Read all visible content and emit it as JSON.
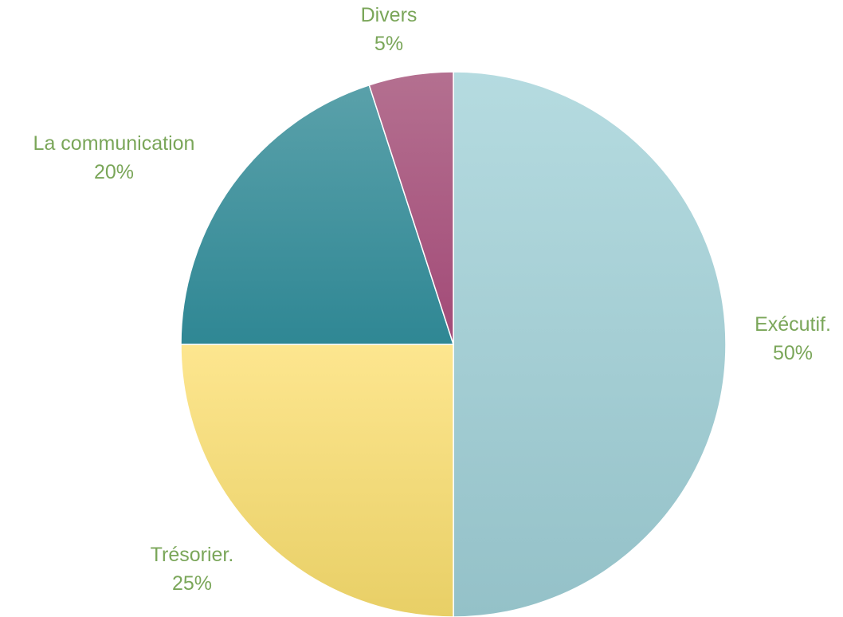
{
  "chart_data": {
    "type": "pie",
    "title": "",
    "start_angle_deg": 0,
    "direction": "clockwise",
    "slices": [
      {
        "label": "Exécutif.",
        "value": 50,
        "percent_label": "50%",
        "colors": [
          "#b5dbe0",
          "#94c1c8"
        ]
      },
      {
        "label": "Trésorier.",
        "value": 25,
        "percent_label": "25%",
        "colors": [
          "#fde68f",
          "#e8cf66"
        ]
      },
      {
        "label": "La communication",
        "value": 20,
        "percent_label": "20%",
        "colors": [
          "#5aa1aa",
          "#2f8794"
        ]
      },
      {
        "label": "Divers",
        "value": 5,
        "percent_label": "5%",
        "colors": [
          "#b47090",
          "#a24a77"
        ]
      }
    ],
    "legend": "none",
    "label_color": "#7aa659"
  }
}
